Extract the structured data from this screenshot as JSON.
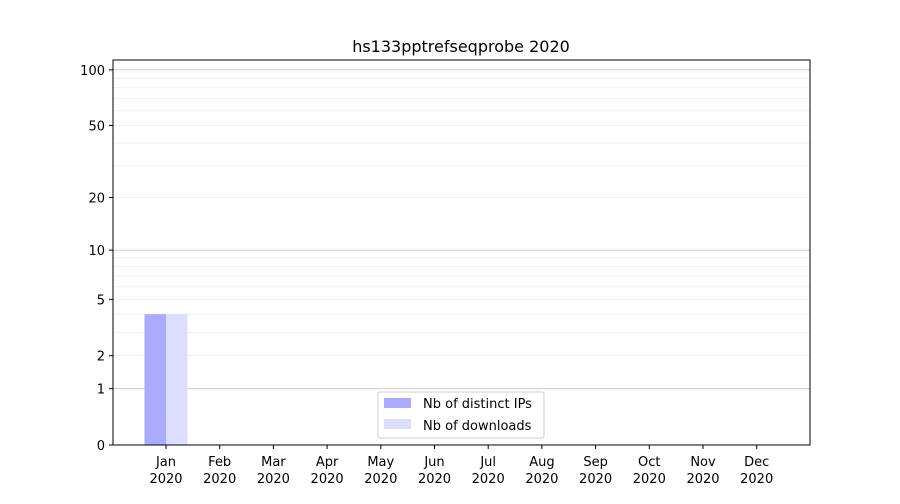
{
  "chart_data": {
    "type": "bar",
    "title": "hs133pptrefseqprobe 2020",
    "xlabel": "",
    "ylabel": "",
    "yscale": "log(1+y)",
    "ylim": [
      0,
      113
    ],
    "yticks": [
      0,
      1,
      2,
      5,
      10,
      20,
      50,
      100
    ],
    "categories": [
      "Jan\n2020",
      "Feb\n2020",
      "Mar\n2020",
      "Apr\n2020",
      "May\n2020",
      "Jun\n2020",
      "Jul\n2020",
      "Aug\n2020",
      "Sep\n2020",
      "Oct\n2020",
      "Nov\n2020",
      "Dec\n2020"
    ],
    "category_months": [
      "Jan",
      "Feb",
      "Mar",
      "Apr",
      "May",
      "Jun",
      "Jul",
      "Aug",
      "Sep",
      "Oct",
      "Nov",
      "Dec"
    ],
    "category_year": "2020",
    "series": [
      {
        "name": "Nb of distinct IPs",
        "color": "#aaaaff",
        "values": [
          4,
          0,
          0,
          0,
          0,
          0,
          0,
          0,
          0,
          0,
          0,
          0
        ]
      },
      {
        "name": "Nb of downloads",
        "color": "#ddddff",
        "values": [
          4,
          0,
          0,
          0,
          0,
          0,
          0,
          0,
          0,
          0,
          0,
          0
        ]
      }
    ],
    "grid": true,
    "legend_position": "bottom-center"
  }
}
